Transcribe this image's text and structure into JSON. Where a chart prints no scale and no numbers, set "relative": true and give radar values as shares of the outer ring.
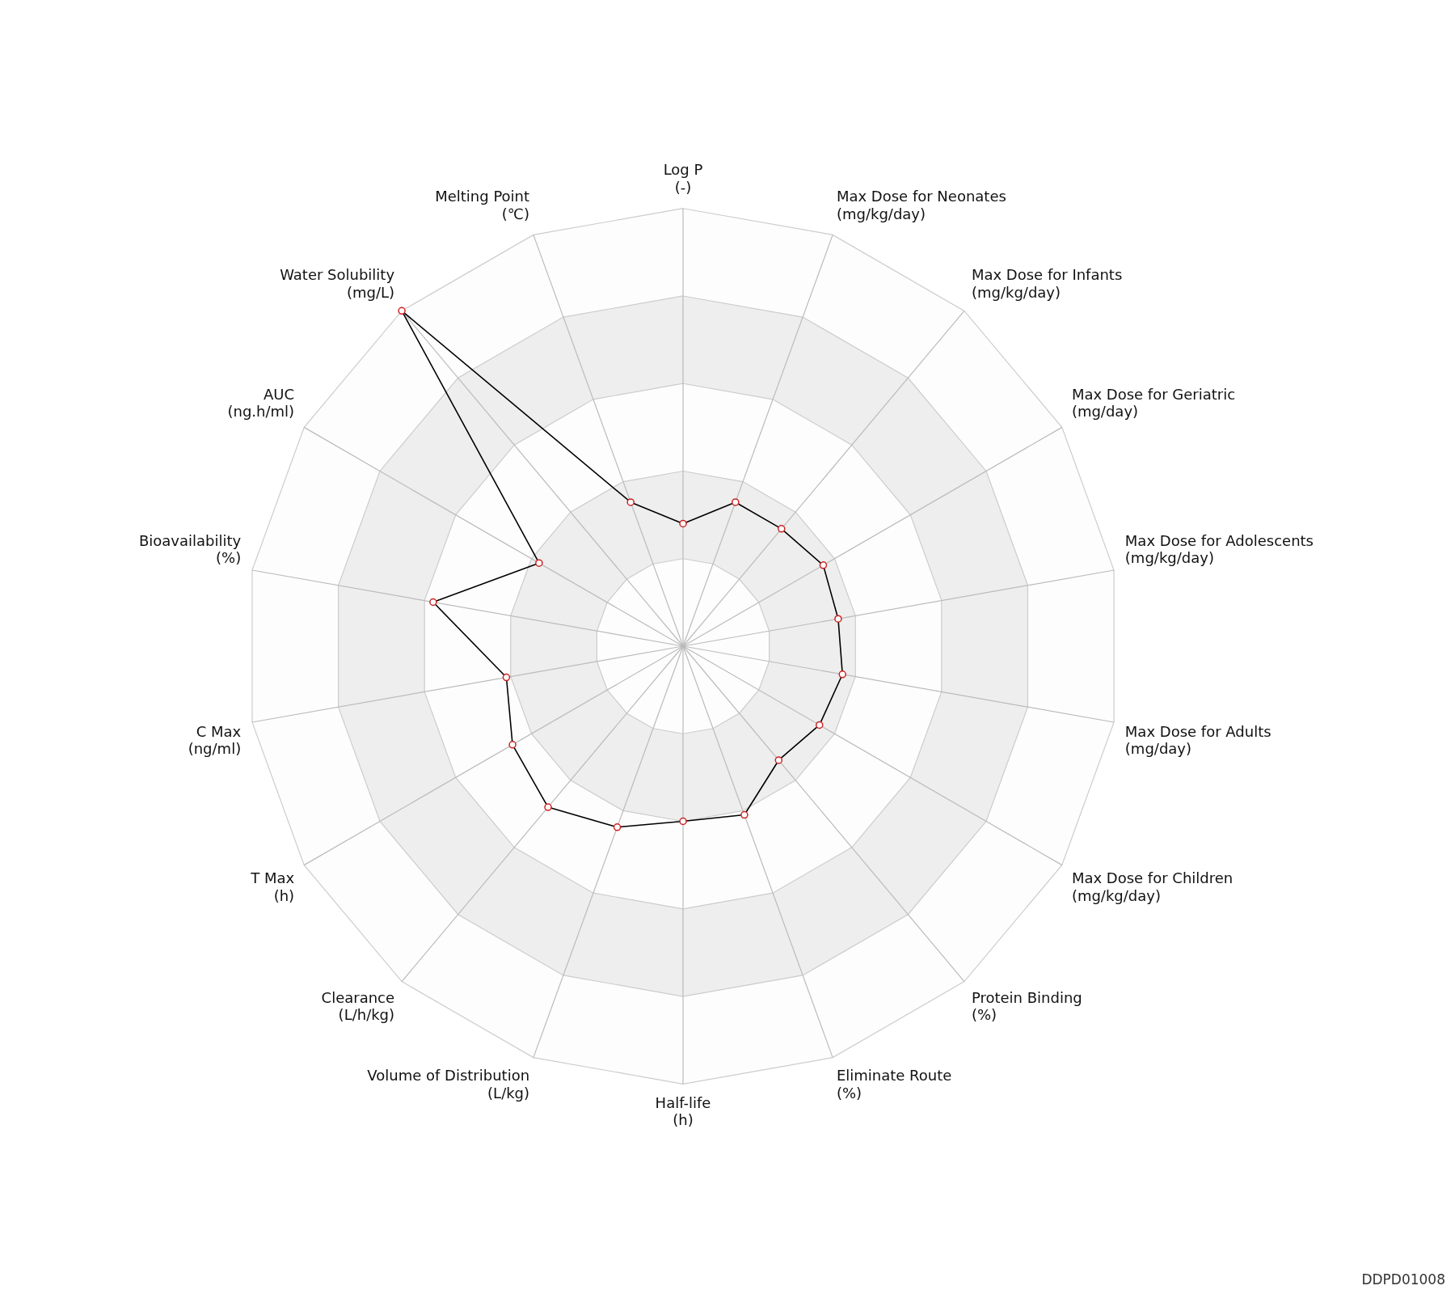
{
  "chart_data": {
    "type": "radar",
    "relative": true,
    "grid": true,
    "marker": "circle",
    "line_style": "solid",
    "legend": false,
    "categories": [
      "Log P\n(-)",
      "Max Dose for Neonates\n(mg/kg/day)",
      "Max Dose for Infants\n(mg/kg/day)",
      "Max Dose for Geriatric\n(mg/day)",
      "Max Dose for Adolescents\n(mg/kg/day)",
      "Max Dose for Adults\n(mg/day)",
      "Max Dose for Children\n(mg/kg/day)",
      "Protein Binding\n(%)",
      "Eliminate Route\n(%)",
      "Half-life\n(h)",
      "Volume of Distribution\n(L/kg)",
      "Clearance\n(L/h/kg)",
      "T Max\n(h)",
      "C Max\n(ng/ml)",
      "Bioavailability\n(%)",
      "AUC\n(ng.h/ml)",
      "Water Solubility\n(mg/L)",
      "Melting Point\n(℃)"
    ],
    "series": [
      {
        "color": "#000000",
        "values": [
          0.28,
          0.35,
          0.35,
          0.37,
          0.36,
          0.37,
          0.36,
          0.34,
          0.41,
          0.4,
          0.44,
          0.48,
          0.45,
          0.41,
          0.58,
          0.38,
          1.0,
          0.35
        ]
      }
    ],
    "annotations": [
      "DDPD01008"
    ]
  }
}
